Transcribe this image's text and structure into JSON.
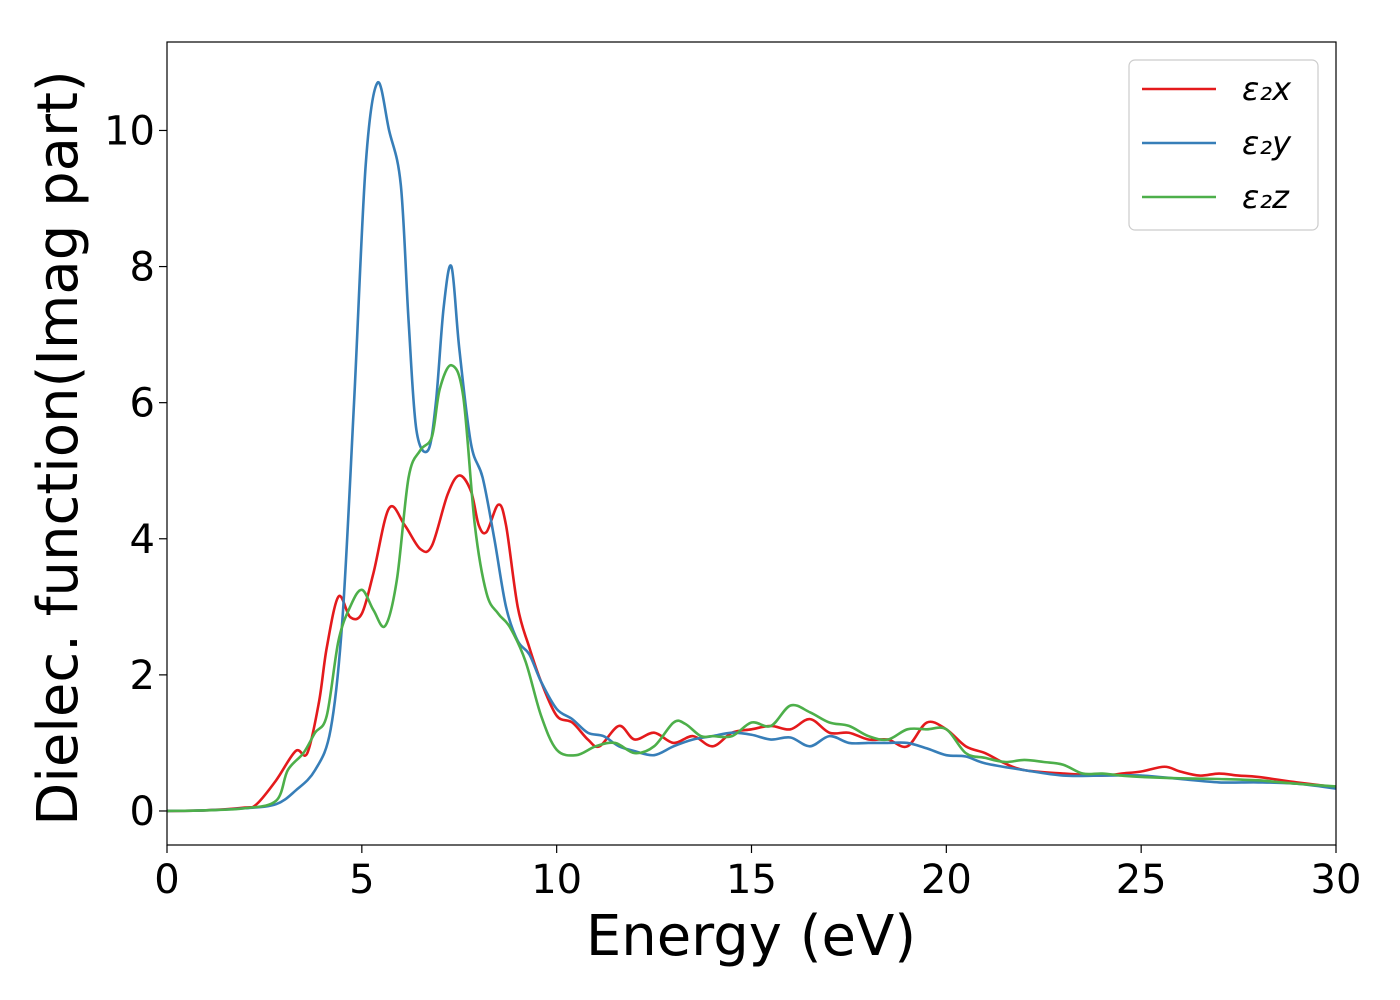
{
  "chart_data": {
    "type": "line",
    "title": "",
    "xlabel": "Energy (eV)",
    "ylabel": "Dielec. function(Imag part)",
    "xlim": [
      0,
      30
    ],
    "ylim": [
      -0.5,
      11.3
    ],
    "xticks": [
      0,
      5,
      10,
      15,
      20,
      25,
      30
    ],
    "yticks": [
      0,
      2,
      4,
      6,
      8,
      10
    ],
    "grid": false,
    "legend_position": "top-right",
    "series": [
      {
        "name": "ε₂x",
        "color": "#e41a1c",
        "points": [
          [
            0,
            0
          ],
          [
            1,
            0.01
          ],
          [
            2,
            0.05
          ],
          [
            2.3,
            0.1
          ],
          [
            2.8,
            0.45
          ],
          [
            3.3,
            0.88
          ],
          [
            3.6,
            0.85
          ],
          [
            3.9,
            1.6
          ],
          [
            4.1,
            2.4
          ],
          [
            4.4,
            3.15
          ],
          [
            4.7,
            2.85
          ],
          [
            5.0,
            2.9
          ],
          [
            5.3,
            3.5
          ],
          [
            5.7,
            4.45
          ],
          [
            6.1,
            4.2
          ],
          [
            6.5,
            3.85
          ],
          [
            6.8,
            3.9
          ],
          [
            7.2,
            4.65
          ],
          [
            7.5,
            4.93
          ],
          [
            7.8,
            4.7
          ],
          [
            8.0,
            4.2
          ],
          [
            8.2,
            4.1
          ],
          [
            8.5,
            4.5
          ],
          [
            8.7,
            4.2
          ],
          [
            9.0,
            3.0
          ],
          [
            9.3,
            2.4
          ],
          [
            9.6,
            1.9
          ],
          [
            10.0,
            1.4
          ],
          [
            10.4,
            1.3
          ],
          [
            10.8,
            1.05
          ],
          [
            11.1,
            0.95
          ],
          [
            11.6,
            1.25
          ],
          [
            12.0,
            1.05
          ],
          [
            12.5,
            1.15
          ],
          [
            13.0,
            1.0
          ],
          [
            13.5,
            1.1
          ],
          [
            14.0,
            0.95
          ],
          [
            14.5,
            1.15
          ],
          [
            15.0,
            1.2
          ],
          [
            15.5,
            1.25
          ],
          [
            16.0,
            1.2
          ],
          [
            16.5,
            1.35
          ],
          [
            17.0,
            1.15
          ],
          [
            17.5,
            1.15
          ],
          [
            18.0,
            1.05
          ],
          [
            18.5,
            1.05
          ],
          [
            19.0,
            0.95
          ],
          [
            19.5,
            1.3
          ],
          [
            20.0,
            1.2
          ],
          [
            20.5,
            0.95
          ],
          [
            21.0,
            0.85
          ],
          [
            21.5,
            0.7
          ],
          [
            22.0,
            0.6
          ],
          [
            23.0,
            0.55
          ],
          [
            24.0,
            0.52
          ],
          [
            24.5,
            0.55
          ],
          [
            25.0,
            0.58
          ],
          [
            25.6,
            0.65
          ],
          [
            26.0,
            0.58
          ],
          [
            26.5,
            0.52
          ],
          [
            27.0,
            0.55
          ],
          [
            27.5,
            0.52
          ],
          [
            28.0,
            0.5
          ],
          [
            29.0,
            0.42
          ],
          [
            30.0,
            0.35
          ]
        ]
      },
      {
        "name": "ε₂y",
        "color": "#377eb8",
        "points": [
          [
            0,
            0
          ],
          [
            1,
            0.01
          ],
          [
            2,
            0.04
          ],
          [
            2.8,
            0.1
          ],
          [
            3.3,
            0.3
          ],
          [
            3.8,
            0.6
          ],
          [
            4.2,
            1.2
          ],
          [
            4.5,
            2.8
          ],
          [
            4.8,
            6.0
          ],
          [
            5.1,
            9.5
          ],
          [
            5.4,
            10.7
          ],
          [
            5.7,
            10.0
          ],
          [
            6.0,
            9.2
          ],
          [
            6.2,
            7.2
          ],
          [
            6.4,
            5.6
          ],
          [
            6.7,
            5.3
          ],
          [
            6.9,
            6.0
          ],
          [
            7.1,
            7.4
          ],
          [
            7.3,
            8.0
          ],
          [
            7.5,
            6.8
          ],
          [
            7.8,
            5.4
          ],
          [
            8.1,
            4.9
          ],
          [
            8.4,
            4.0
          ],
          [
            8.7,
            3.0
          ],
          [
            9.0,
            2.5
          ],
          [
            9.3,
            2.3
          ],
          [
            9.6,
            1.9
          ],
          [
            10.0,
            1.5
          ],
          [
            10.4,
            1.35
          ],
          [
            10.8,
            1.15
          ],
          [
            11.2,
            1.1
          ],
          [
            11.6,
            0.95
          ],
          [
            12.0,
            0.88
          ],
          [
            12.5,
            0.82
          ],
          [
            13.0,
            0.95
          ],
          [
            13.5,
            1.05
          ],
          [
            14.0,
            1.1
          ],
          [
            14.5,
            1.15
          ],
          [
            15.0,
            1.12
          ],
          [
            15.5,
            1.05
          ],
          [
            16.0,
            1.08
          ],
          [
            16.5,
            0.95
          ],
          [
            17.0,
            1.1
          ],
          [
            17.5,
            1.0
          ],
          [
            18.0,
            1.0
          ],
          [
            18.5,
            1.0
          ],
          [
            19.0,
            1.0
          ],
          [
            19.5,
            0.92
          ],
          [
            20.0,
            0.82
          ],
          [
            20.5,
            0.8
          ],
          [
            21.0,
            0.7
          ],
          [
            22.0,
            0.6
          ],
          [
            23.0,
            0.52
          ],
          [
            24.0,
            0.52
          ],
          [
            25.0,
            0.52
          ],
          [
            26.0,
            0.47
          ],
          [
            27.0,
            0.42
          ],
          [
            28.0,
            0.42
          ],
          [
            29.0,
            0.4
          ],
          [
            30.0,
            0.33
          ]
        ]
      },
      {
        "name": "ε₂z",
        "color": "#4daf4a",
        "points": [
          [
            0,
            0
          ],
          [
            1,
            0.01
          ],
          [
            2,
            0.04
          ],
          [
            2.8,
            0.15
          ],
          [
            3.1,
            0.6
          ],
          [
            3.5,
            0.85
          ],
          [
            3.8,
            1.15
          ],
          [
            4.1,
            1.4
          ],
          [
            4.4,
            2.5
          ],
          [
            4.7,
            3.0
          ],
          [
            5.0,
            3.25
          ],
          [
            5.3,
            2.95
          ],
          [
            5.6,
            2.72
          ],
          [
            5.9,
            3.4
          ],
          [
            6.2,
            4.9
          ],
          [
            6.5,
            5.3
          ],
          [
            6.8,
            5.5
          ],
          [
            7.0,
            6.2
          ],
          [
            7.3,
            6.55
          ],
          [
            7.6,
            6.1
          ],
          [
            7.9,
            4.2
          ],
          [
            8.2,
            3.2
          ],
          [
            8.5,
            2.9
          ],
          [
            8.8,
            2.7
          ],
          [
            9.2,
            2.2
          ],
          [
            9.6,
            1.4
          ],
          [
            10.0,
            0.9
          ],
          [
            10.5,
            0.82
          ],
          [
            11.0,
            0.95
          ],
          [
            11.5,
            1.0
          ],
          [
            12.0,
            0.85
          ],
          [
            12.5,
            0.95
          ],
          [
            13.0,
            1.3
          ],
          [
            13.3,
            1.28
          ],
          [
            13.7,
            1.1
          ],
          [
            14.0,
            1.1
          ],
          [
            14.5,
            1.1
          ],
          [
            15.0,
            1.3
          ],
          [
            15.5,
            1.25
          ],
          [
            16.0,
            1.55
          ],
          [
            16.5,
            1.45
          ],
          [
            17.0,
            1.3
          ],
          [
            17.5,
            1.25
          ],
          [
            18.0,
            1.1
          ],
          [
            18.5,
            1.05
          ],
          [
            19.0,
            1.2
          ],
          [
            19.5,
            1.2
          ],
          [
            20.0,
            1.2
          ],
          [
            20.5,
            0.85
          ],
          [
            21.0,
            0.78
          ],
          [
            21.5,
            0.72
          ],
          [
            22.0,
            0.75
          ],
          [
            22.5,
            0.72
          ],
          [
            23.0,
            0.68
          ],
          [
            23.5,
            0.55
          ],
          [
            24.0,
            0.55
          ],
          [
            24.5,
            0.52
          ],
          [
            25.0,
            0.5
          ],
          [
            26.0,
            0.48
          ],
          [
            27.0,
            0.47
          ],
          [
            28.0,
            0.45
          ],
          [
            29.0,
            0.4
          ],
          [
            30.0,
            0.36
          ]
        ]
      }
    ]
  }
}
